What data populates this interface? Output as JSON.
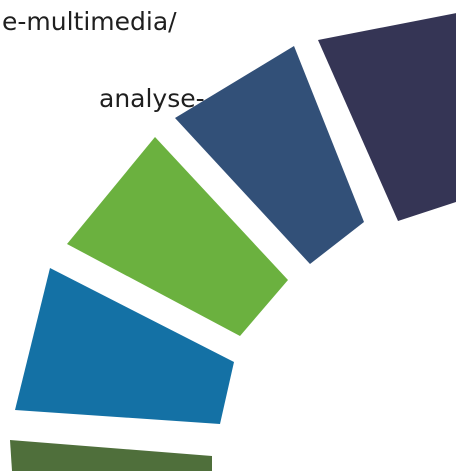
{
  "text": {
    "line_1": "e-multimedia/",
    "line_2": "analyse-"
  },
  "segments": [
    {
      "name": "segment-1",
      "color": "#353555"
    },
    {
      "name": "segment-2",
      "color": "#325078"
    },
    {
      "name": "segment-3",
      "color": "#6bb13f"
    },
    {
      "name": "segment-4",
      "color": "#1471a5"
    },
    {
      "name": "segment-5",
      "color": "#4f6f3b"
    }
  ]
}
